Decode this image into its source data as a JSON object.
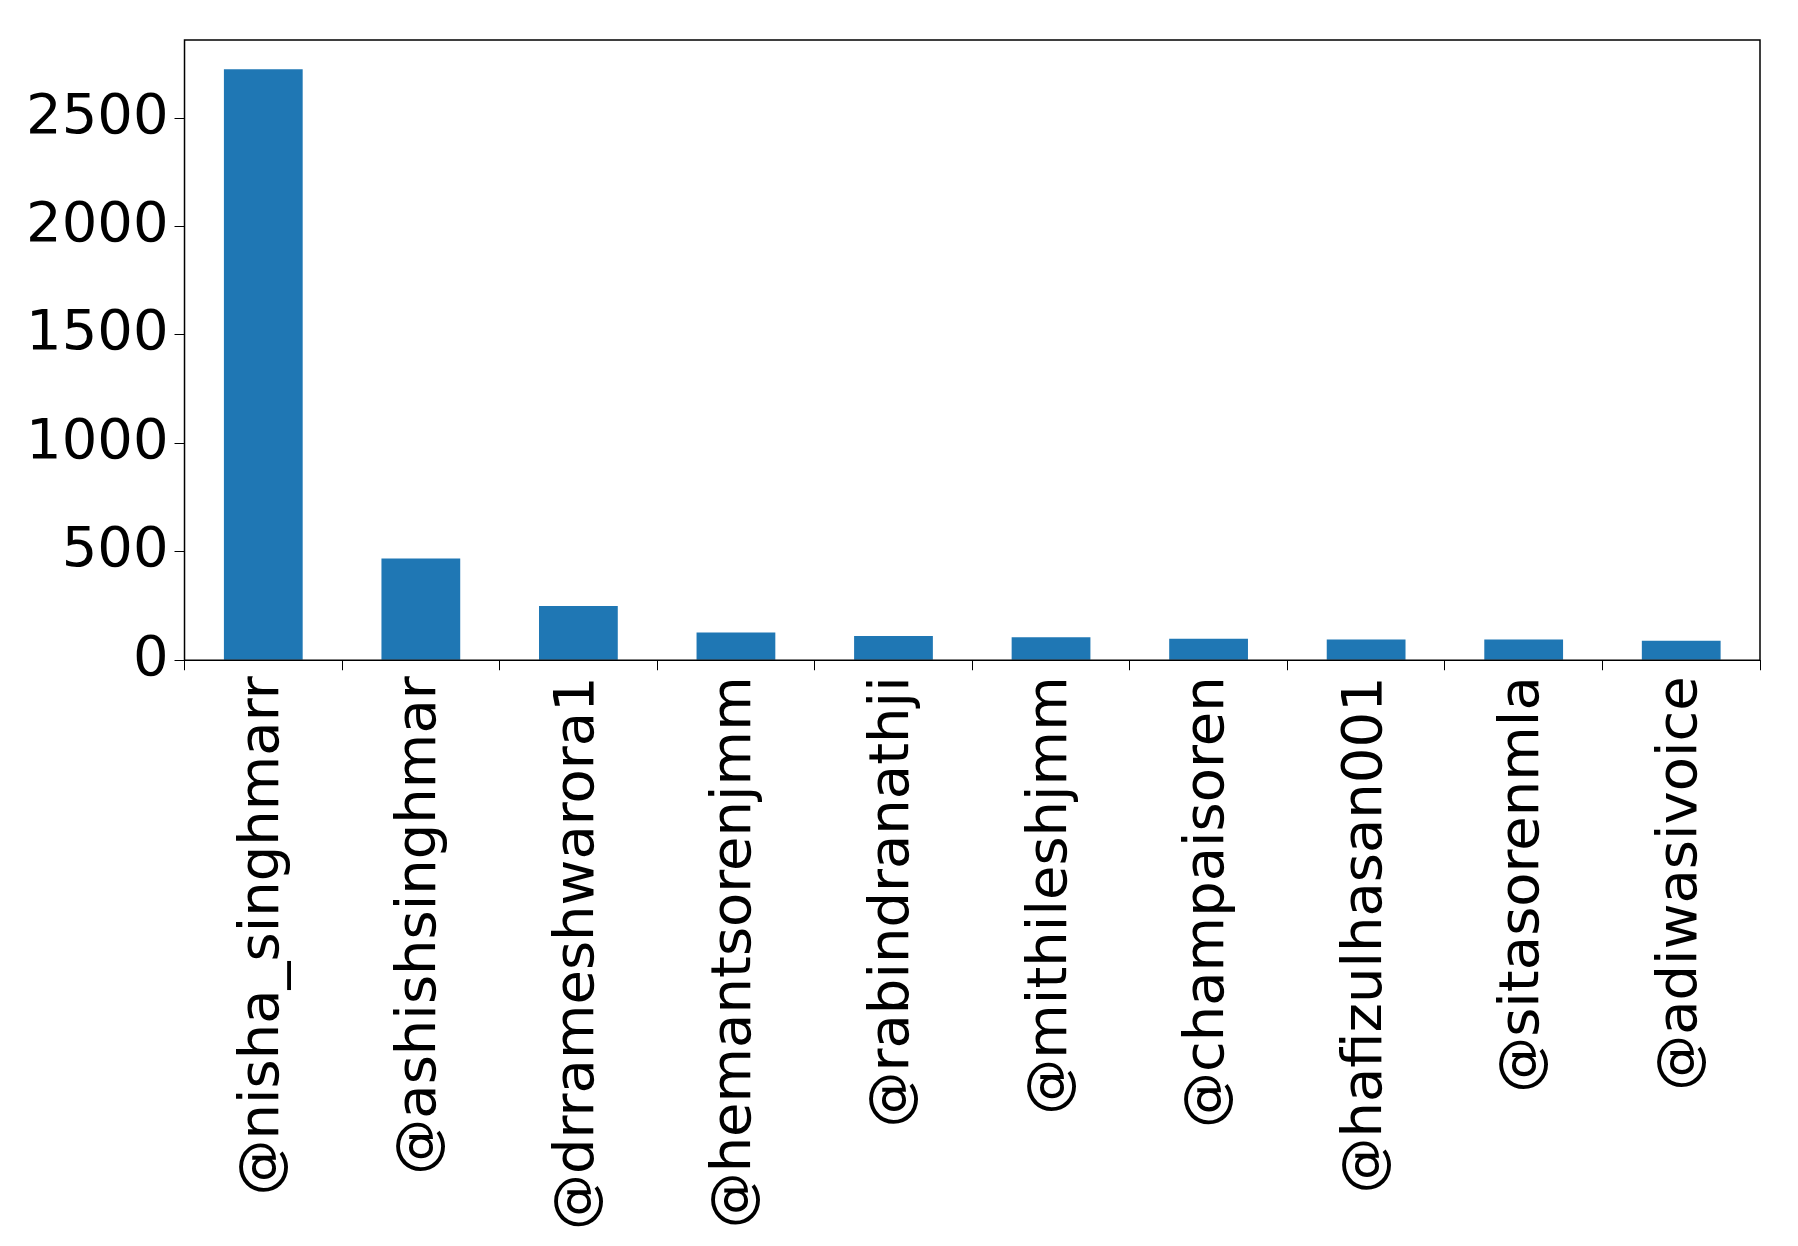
{
  "chart_data": {
    "type": "bar",
    "categories": [
      "@nisha_singhmarr",
      "@ashishsinghmar",
      "@drrameshwarora1",
      "@hemantsorenjmm",
      "@rabindranathji",
      "@mithileshjmm",
      "@champaisoren",
      "@hafizulhasan001",
      "@sitasorenmla",
      "@adiwasivoice"
    ],
    "values": [
      2725,
      469,
      250,
      128,
      112,
      106,
      99,
      96,
      96,
      90
    ],
    "color": "#1f77b4",
    "ylim": [
      0,
      2860
    ],
    "yticks": [
      0,
      500,
      1000,
      1500,
      2000,
      2500
    ],
    "grid": false,
    "legend": false
  }
}
